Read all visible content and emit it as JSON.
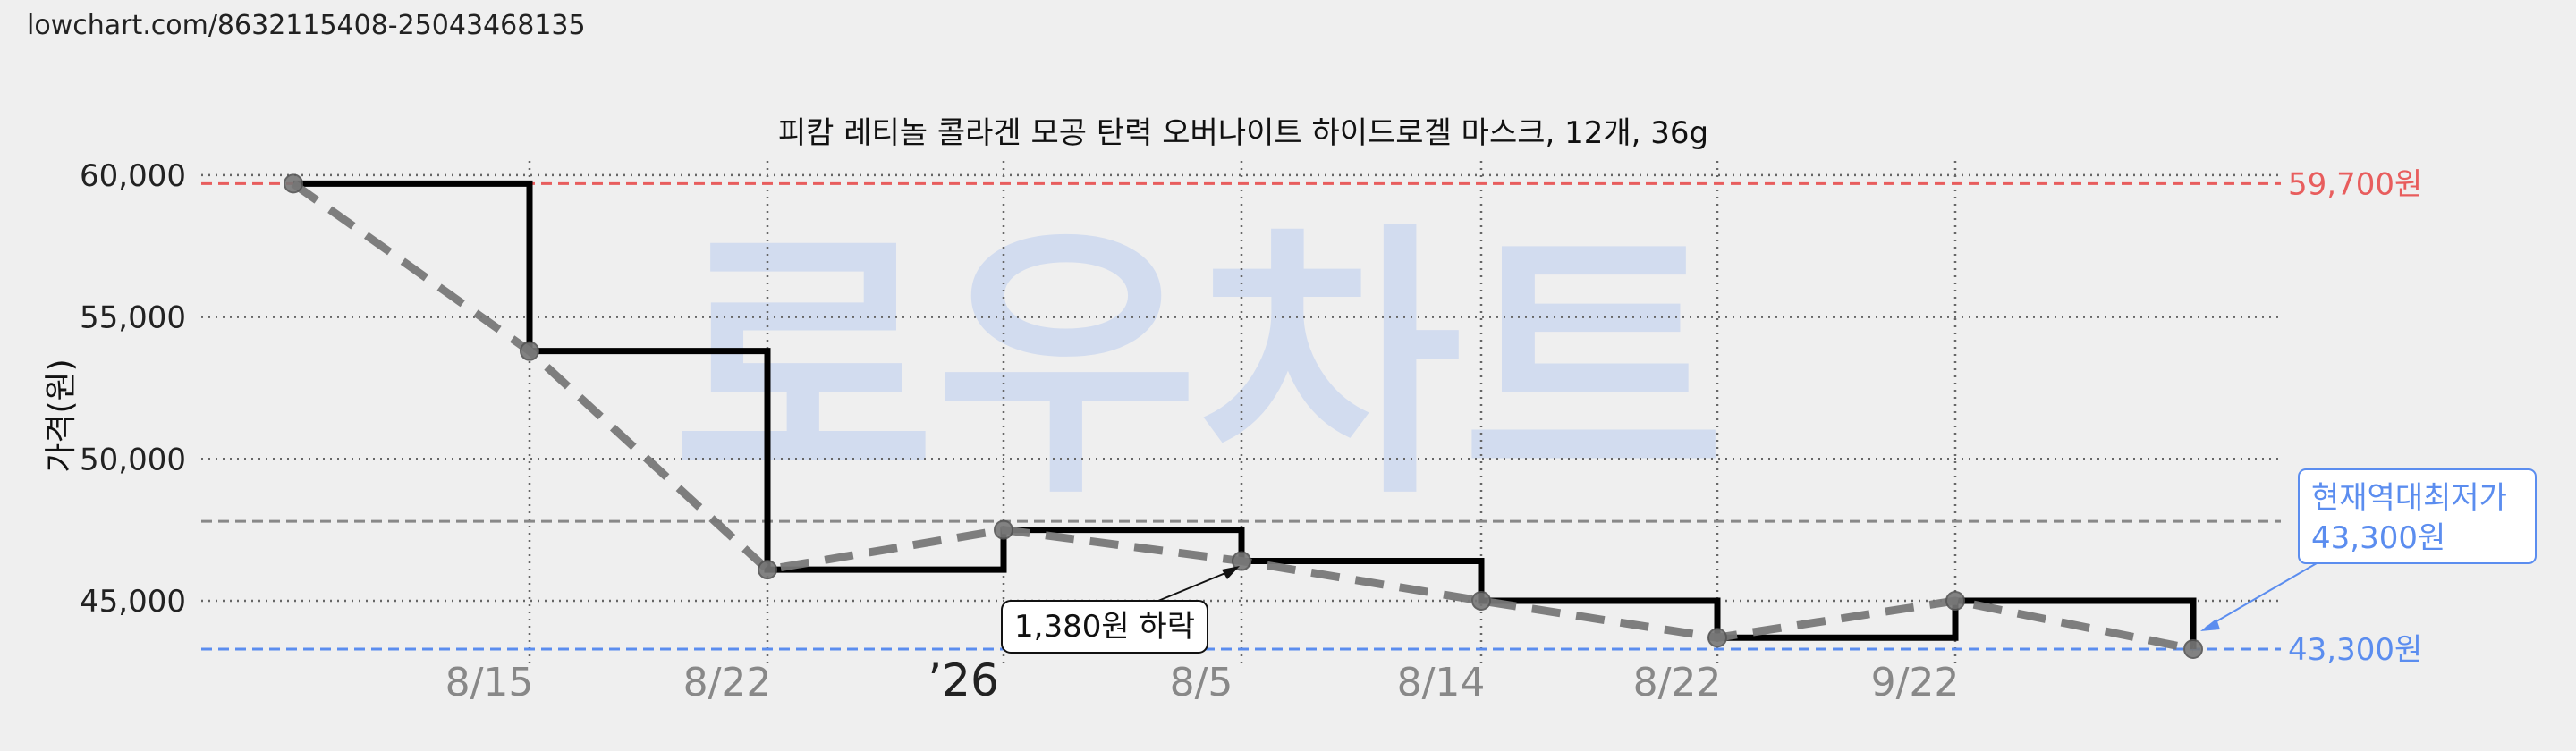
{
  "url": "lowchart.com/8632115408-25043468135",
  "watermark": "로우차트",
  "chart_data": {
    "type": "line",
    "title": "피캄 레티놀 콜라겐 모공 탄력 오버나이트 하이드로겔 마스크, 12개, 36g",
    "ylabel": "가격(원)",
    "ylim": [
      42700,
      60500
    ],
    "yticks": [
      {
        "value": 45000,
        "label": "45,000"
      },
      {
        "value": 50000,
        "label": "50,000"
      },
      {
        "value": 55000,
        "label": "55,000"
      },
      {
        "value": 60000,
        "label": "60,000"
      }
    ],
    "xticks": [
      {
        "label": "8/15",
        "year": false
      },
      {
        "label": "8/22",
        "year": false
      },
      {
        "label": "’26",
        "year": true
      },
      {
        "label": "8/5",
        "year": false
      },
      {
        "label": "8/14",
        "year": false
      },
      {
        "label": "8/22",
        "year": false
      },
      {
        "label": "9/22",
        "year": false
      }
    ],
    "series": [
      {
        "style": "step",
        "values": [
          59700,
          53800,
          46100,
          47500,
          46400,
          45000,
          43700,
          45000,
          43300
        ],
        "color": "#000000"
      },
      {
        "style": "dashed",
        "values": [
          59700,
          53800,
          46100,
          47500,
          46400,
          45000,
          43700,
          45000,
          43300
        ],
        "color": "#777777"
      }
    ],
    "reference_lines": [
      {
        "value": 59700,
        "label": "59,700원",
        "color": "#e85d5d"
      },
      {
        "value": 47800,
        "label": "",
        "color": "#888888"
      },
      {
        "value": 43300,
        "label": "43,300원",
        "color": "#5b8def"
      }
    ],
    "annotation": {
      "text": "1,380원 하락"
    },
    "callout": {
      "line1": "현재역대최저가",
      "line2": "43,300원",
      "color": "#5b8def"
    },
    "grid": true
  }
}
